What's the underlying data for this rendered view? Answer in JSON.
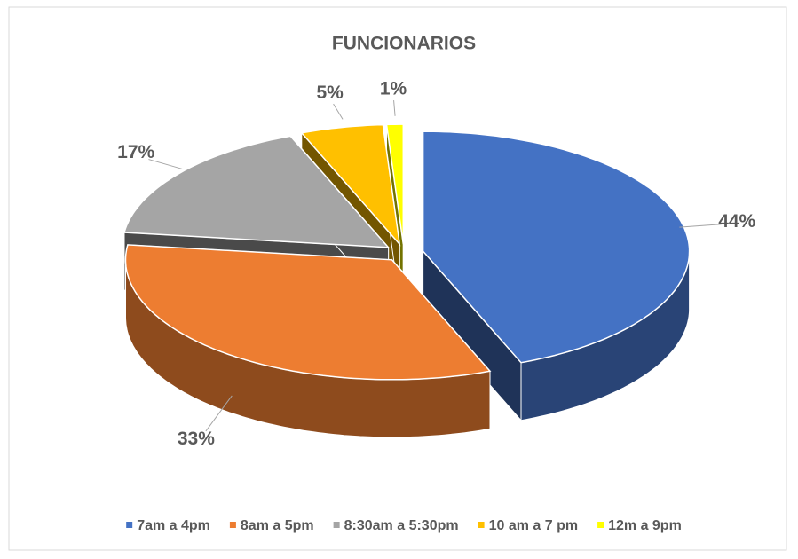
{
  "chart_data": {
    "type": "pie3d",
    "title": "FUNCIONARIOS",
    "categories": [
      "7am a 4pm",
      "8am a 5pm",
      "8:30am a 5:30pm",
      "10 am a 7 pm",
      "12m a 9pm"
    ],
    "values": [
      44,
      33,
      17,
      5,
      1
    ],
    "value_labels": [
      "44%",
      "33%",
      "17%",
      "5%",
      "1%"
    ],
    "colors": [
      "#4472c4",
      "#ed7d31",
      "#a5a5a5",
      "#ffc000",
      "#ffff00"
    ],
    "legend": "bottom"
  }
}
